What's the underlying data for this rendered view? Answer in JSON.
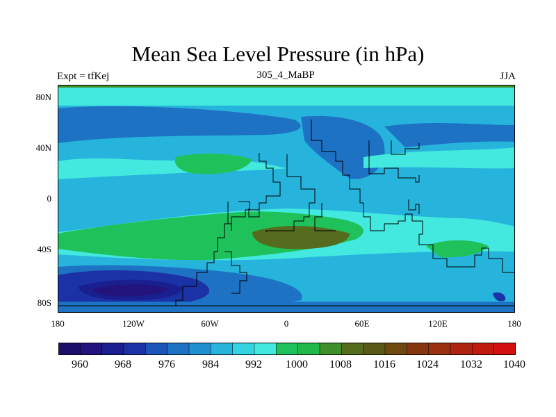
{
  "title": "Mean Sea Level Pressure (in hPa)",
  "left_label": "Expt = tfKej",
  "center_label": "305_4_MaBP",
  "right_label": "JJA",
  "lat_ticks": [
    "80N",
    "40N",
    "0",
    "40S",
    "80S"
  ],
  "lon_ticks": [
    "180",
    "120W",
    "60W",
    "0",
    "60E",
    "120E",
    "180"
  ],
  "colorbar": {
    "labels": [
      "960",
      "968",
      "976",
      "984",
      "992",
      "1000",
      "1008",
      "1016",
      "1024",
      "1032",
      "1040"
    ],
    "colors": [
      "#1a0f6b",
      "#23137d",
      "#1a1f8f",
      "#1b32a6",
      "#1b55b9",
      "#1e72c4",
      "#1f8fd0",
      "#26b4dc",
      "#33d3e2",
      "#43e8df",
      "#1fc25a",
      "#23b84a",
      "#3f8f2d",
      "#556b1e",
      "#5a5816",
      "#6e4a10",
      "#86360e",
      "#993010",
      "#ad2510",
      "#c01a0f",
      "#d31010"
    ]
  },
  "legend_colors": {
    "low_deep": "#1a1f8f",
    "low": "#1e72c4",
    "mid_low": "#26b4dc",
    "mid": "#43e8df",
    "high": "#1fc25a",
    "higher": "#556b1e"
  }
}
